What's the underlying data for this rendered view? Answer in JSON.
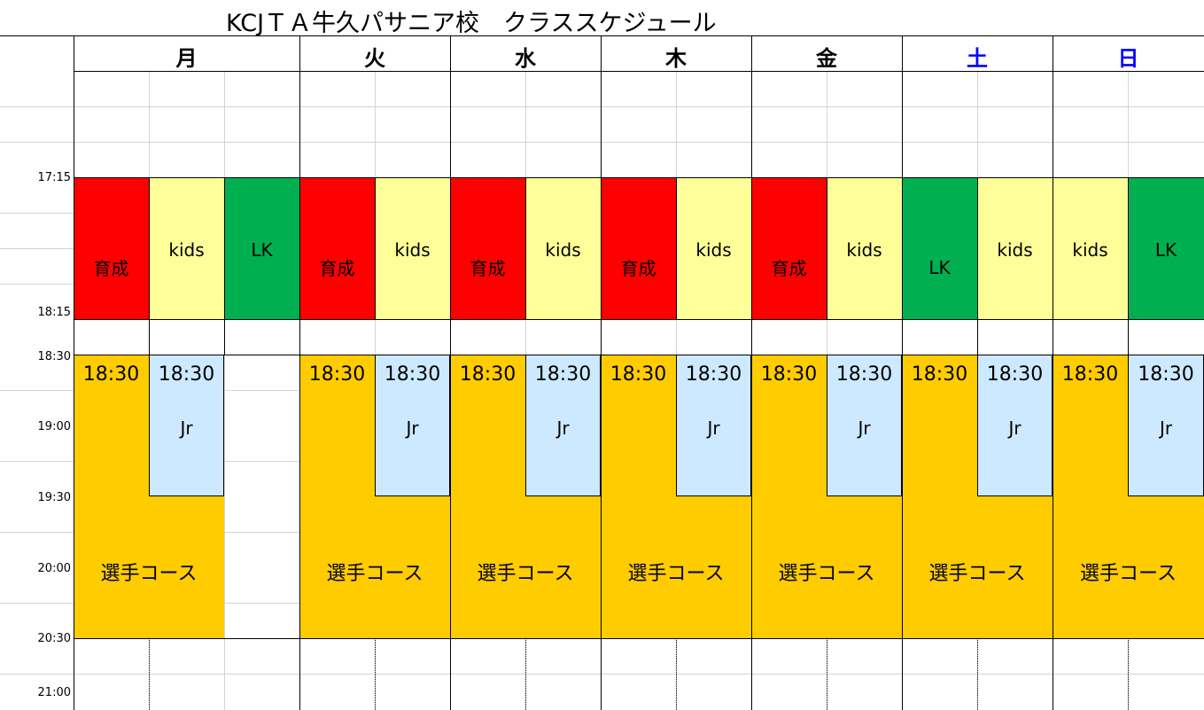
{
  "title": "KCJＴＡ牛久パサニア校　クラススケジュール",
  "days": [
    {
      "label": "月",
      "color": "#000000"
    },
    {
      "label": "火",
      "color": "#000000"
    },
    {
      "label": "水",
      "color": "#000000"
    },
    {
      "label": "木",
      "color": "#000000"
    },
    {
      "label": "金",
      "color": "#000000"
    },
    {
      "label": "土",
      "color": "#0000ff"
    },
    {
      "label": "日",
      "color": "#0000ff"
    }
  ],
  "times": [
    "17:15",
    "18:15",
    "18:30",
    "19:00",
    "19:30",
    "20:00",
    "20:30",
    "21:00"
  ],
  "labels": {
    "ikusei": "育成",
    "kids": "kids",
    "lk": "LK",
    "t1830": "18:30",
    "jr": "Jr",
    "senshu": "選手コース"
  },
  "colors": {
    "ikusei": "#ff0000",
    "kids": "#ffff99",
    "lk": "#00b050",
    "senshu": "#ffcc00",
    "jr": "#cce9ff",
    "weekend_header": "#0000ff"
  }
}
